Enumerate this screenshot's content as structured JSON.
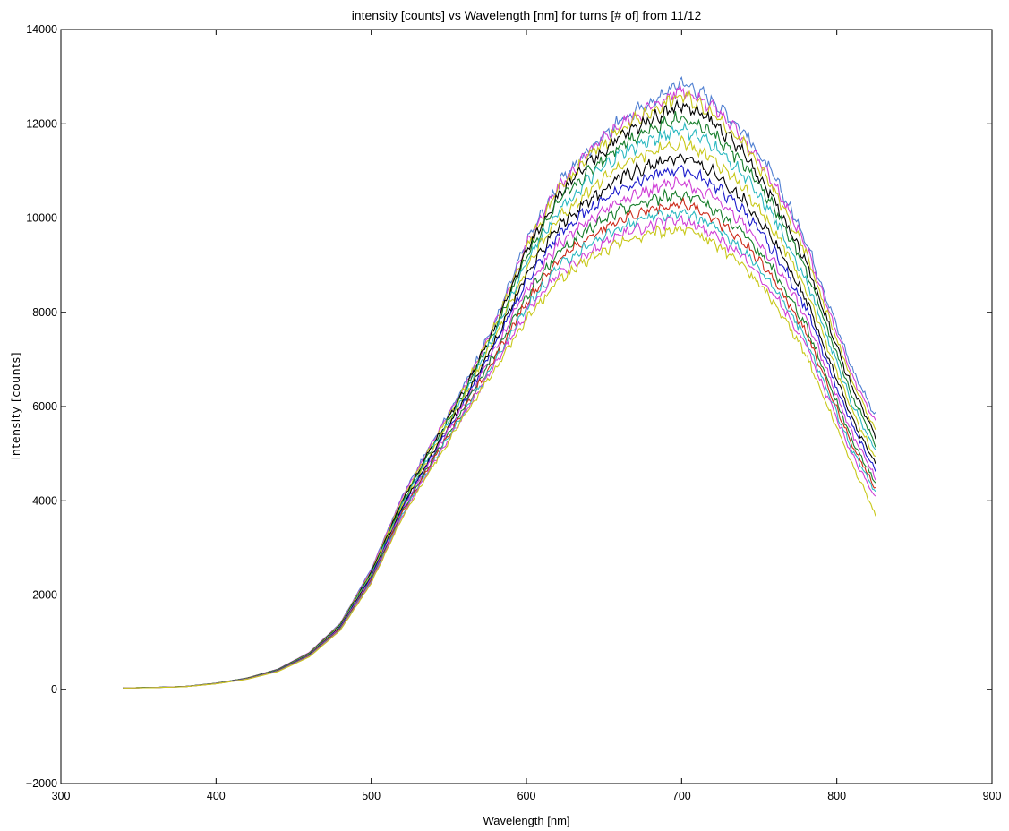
{
  "chart_data": {
    "type": "line",
    "title": "intensity [counts] vs Wavelength [nm] for turns [# of] from 11/12",
    "xlabel": "Wavelength [nm]",
    "ylabel": "intensity [counts]",
    "xlim": [
      300,
      900
    ],
    "ylim": [
      -2000,
      14000
    ],
    "xticks": [
      300,
      400,
      500,
      600,
      700,
      800,
      900
    ],
    "yticks": [
      -2000,
      0,
      2000,
      4000,
      6000,
      8000,
      10000,
      12000,
      14000
    ],
    "xtick_labels": [
      "300",
      "400",
      "500",
      "600",
      "700",
      "800",
      "900"
    ],
    "ytick_labels": [
      "−2000",
      "0",
      "2000",
      "4000",
      "6000",
      "8000",
      "10000",
      "12000",
      "14000"
    ],
    "grid": false,
    "legend": "none",
    "x": [
      340,
      360,
      380,
      400,
      420,
      440,
      460,
      480,
      500,
      520,
      540,
      560,
      580,
      600,
      620,
      640,
      660,
      680,
      700,
      720,
      740,
      760,
      780,
      800,
      810,
      825
    ],
    "series": [
      {
        "color": "#4f7fd1",
        "values": [
          30,
          40,
          60,
          130,
          240,
          430,
          780,
          1400,
          2550,
          4100,
          5300,
          6450,
          7800,
          9500,
          10700,
          11450,
          12050,
          12450,
          12900,
          12500,
          11850,
          10850,
          9550,
          7700,
          6800,
          5800
        ]
      },
      {
        "color": "#cf3fd6",
        "values": [
          30,
          40,
          60,
          130,
          240,
          430,
          780,
          1390,
          2530,
          4080,
          5270,
          6420,
          7760,
          9450,
          10620,
          11380,
          11980,
          12350,
          12750,
          12380,
          11700,
          10700,
          9400,
          7550,
          6650,
          5650
        ]
      },
      {
        "color": "#c8c81a",
        "values": [
          30,
          40,
          60,
          130,
          238,
          425,
          770,
          1380,
          2500,
          4040,
          5230,
          6380,
          7720,
          9380,
          10550,
          11300,
          11880,
          12250,
          12600,
          12250,
          11580,
          10560,
          9260,
          7420,
          6520,
          5500
        ]
      },
      {
        "color": "#000000",
        "values": [
          30,
          40,
          60,
          128,
          236,
          422,
          765,
          1370,
          2480,
          4000,
          5200,
          6340,
          7680,
          9300,
          10450,
          11150,
          11720,
          12100,
          12400,
          12050,
          11380,
          10380,
          9080,
          7260,
          6380,
          5350
        ]
      },
      {
        "color": "#167d2a",
        "values": [
          30,
          40,
          60,
          128,
          234,
          418,
          760,
          1360,
          2460,
          3960,
          5160,
          6300,
          7620,
          9200,
          10300,
          10980,
          11550,
          11900,
          12150,
          11800,
          11150,
          10200,
          8900,
          7100,
          6220,
          5200
        ]
      },
      {
        "color": "#2ab8c0",
        "values": [
          28,
          38,
          58,
          126,
          232,
          414,
          752,
          1350,
          2440,
          3930,
          5120,
          6250,
          7560,
          9080,
          10150,
          10800,
          11350,
          11650,
          11900,
          11550,
          10920,
          9980,
          8700,
          6930,
          6060,
          5050
        ]
      },
      {
        "color": "#c8c81a",
        "values": [
          28,
          38,
          58,
          125,
          230,
          410,
          745,
          1340,
          2420,
          3900,
          5080,
          6200,
          7480,
          8950,
          9980,
          10580,
          11100,
          11380,
          11600,
          11260,
          10650,
          9740,
          8500,
          6750,
          5900,
          4900
        ]
      },
      {
        "color": "#000000",
        "values": [
          28,
          38,
          58,
          124,
          228,
          406,
          738,
          1330,
          2400,
          3870,
          5040,
          6150,
          7400,
          8800,
          9800,
          10380,
          10850,
          11120,
          11300,
          10980,
          10400,
          9500,
          8300,
          6570,
          5730,
          4750
        ]
      },
      {
        "color": "#1a1acc",
        "values": [
          28,
          38,
          58,
          123,
          226,
          402,
          730,
          1320,
          2380,
          3840,
          5000,
          6100,
          7320,
          8650,
          9620,
          10180,
          10620,
          10880,
          11050,
          10720,
          10150,
          9280,
          8110,
          6400,
          5580,
          4620
        ]
      },
      {
        "color": "#cf3fd6",
        "values": [
          27,
          37,
          57,
          122,
          224,
          398,
          722,
          1305,
          2350,
          3800,
          4950,
          6040,
          7220,
          8480,
          9420,
          9950,
          10360,
          10600,
          10760,
          10440,
          9880,
          9040,
          7900,
          6230,
          5420,
          4480
        ]
      },
      {
        "color": "#167d2a",
        "values": [
          27,
          37,
          57,
          121,
          222,
          394,
          715,
          1290,
          2330,
          3770,
          4910,
          5990,
          7140,
          8340,
          9250,
          9760,
          10150,
          10380,
          10520,
          10220,
          9670,
          8850,
          7730,
          6090,
          5290,
          4370
        ]
      },
      {
        "color": "#cc2a1a",
        "values": [
          27,
          37,
          57,
          120,
          220,
          390,
          708,
          1280,
          2310,
          3740,
          4870,
          5940,
          7060,
          8220,
          9100,
          9590,
          9970,
          10190,
          10320,
          10030,
          9490,
          8690,
          7590,
          5970,
          5180,
          4270
        ]
      },
      {
        "color": "#2ab8c0",
        "values": [
          27,
          37,
          56,
          119,
          218,
          386,
          700,
          1270,
          2290,
          3710,
          4830,
          5890,
          6980,
          8100,
          8950,
          9430,
          9800,
          10010,
          10130,
          9850,
          9320,
          8530,
          7450,
          5850,
          5070,
          4180
        ]
      },
      {
        "color": "#cf3fd6",
        "values": [
          26,
          36,
          56,
          118,
          216,
          382,
          693,
          1260,
          2270,
          3680,
          4790,
          5840,
          6900,
          7990,
          8810,
          9280,
          9640,
          9840,
          9960,
          9680,
          9160,
          8380,
          7310,
          5730,
          4960,
          4080
        ]
      },
      {
        "color": "#c8c81a",
        "values": [
          26,
          36,
          55,
          117,
          214,
          378,
          686,
          1250,
          2250,
          3650,
          4750,
          5790,
          6820,
          7870,
          8660,
          9120,
          9470,
          9670,
          9780,
          9500,
          8980,
          8200,
          7120,
          5550,
          4780,
          3680
        ]
      }
    ]
  }
}
